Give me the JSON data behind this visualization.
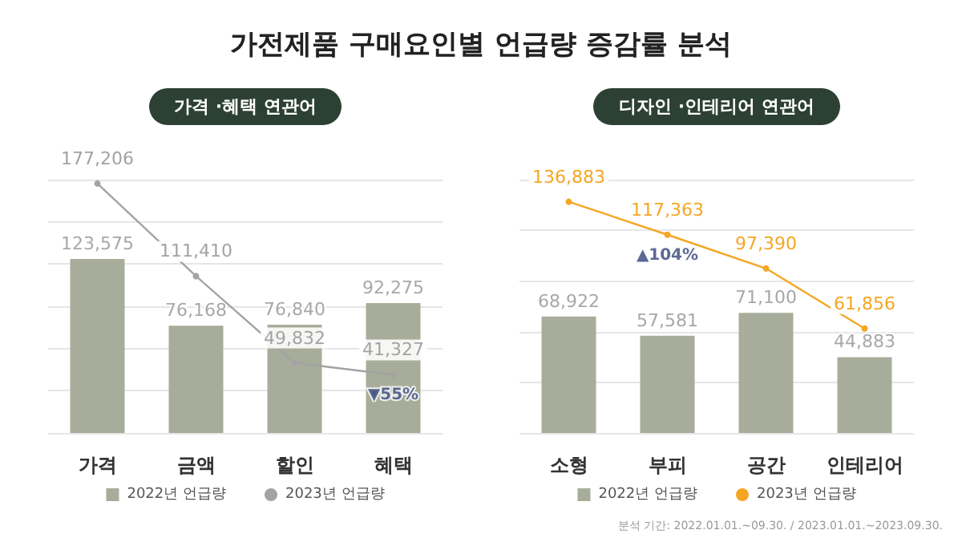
{
  "chart_data": [
    {
      "type": "bar",
      "title": "가전제품 구매요인별 언급량 증감률 분석",
      "subtitle": "가격 ·혜택 연관어",
      "categories": [
        "가격",
        "금액",
        "할인",
        "혜택"
      ],
      "series": [
        {
          "name": "2022년 언급량",
          "color": "#a7ad9a",
          "values": [
            123575,
            76168,
            76840,
            92275
          ],
          "value_labels": [
            "123,575",
            "76,168",
            "76,840",
            "92,275"
          ]
        },
        {
          "name": "2023년 언급량",
          "type": "line",
          "color": "#a3a3a3",
          "values": [
            177206,
            111410,
            49832,
            41327
          ],
          "value_labels": [
            "177,206",
            "111,410",
            "49,832",
            "41,327"
          ]
        }
      ],
      "grid": "y",
      "tick_labels": "x",
      "legend": "bottom",
      "marker": "circle",
      "annotations": [
        {
          "text": "▼55%",
          "x": "혜택",
          "y": 41327
        }
      ]
    },
    {
      "type": "bar",
      "subtitle": "디자인 ·인테리어 연관어",
      "categories": [
        "소형",
        "부피",
        "공간",
        "인테리어"
      ],
      "series": [
        {
          "name": "2022년 언급량",
          "color": "#a7ad9a",
          "values": [
            68922,
            57581,
            71100,
            44883
          ],
          "value_labels": [
            "68,922",
            "57,581",
            "71,100",
            "44,883"
          ]
        },
        {
          "name": "2023년 언급량",
          "type": "line",
          "color": "#f5a623",
          "values": [
            136883,
            117363,
            97390,
            61856
          ],
          "value_labels": [
            "136,883",
            "117,363",
            "97,390",
            "61,856"
          ]
        }
      ],
      "grid": "y",
      "tick_labels": "x",
      "legend": "bottom",
      "marker": "circle",
      "annotations": [
        {
          "text": "▲104%",
          "x": "부피",
          "y": 117363
        },
        "분석 기간: 2022.01.01.~09.30. / 2023.01.01.~2023.09.30."
      ]
    }
  ]
}
